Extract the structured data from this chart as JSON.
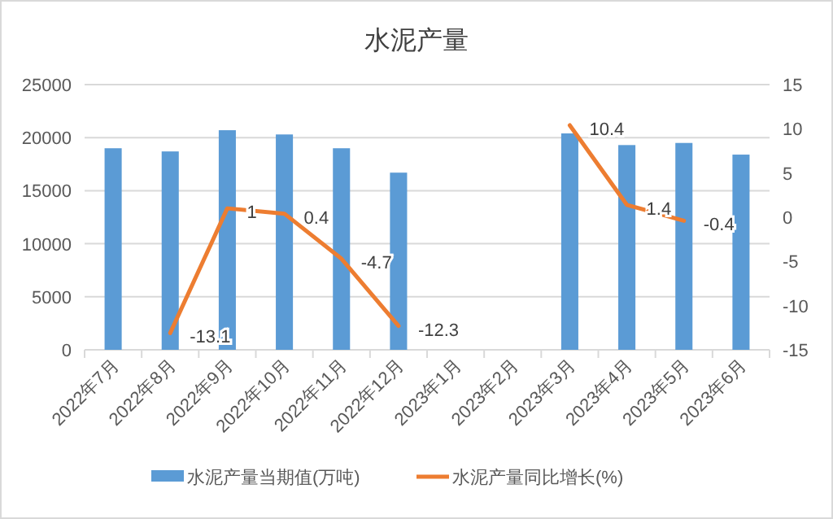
{
  "chart_data": {
    "type": "bar",
    "title": "水泥产量",
    "categories": [
      "2022年7月",
      "2022年8月",
      "2022年9月",
      "2022年10月",
      "2022年11月",
      "2022年12月",
      "2023年1月",
      "2023年2月",
      "2023年3月",
      "2023年4月",
      "2023年5月",
      "2023年6月"
    ],
    "series": [
      {
        "name": "水泥产量当期值(万吨)",
        "color": "#5b9bd5",
        "values": [
          19000,
          18700,
          20700,
          20300,
          19000,
          16700,
          null,
          null,
          20400,
          19300,
          19500,
          18400
        ]
      },
      {
        "name": "水泥产量同比增长(%)",
        "type": "line",
        "axis": "y2",
        "color": "#ed7d31",
        "values": [
          null,
          -13.1,
          1,
          0.4,
          -4.7,
          -12.3,
          null,
          null,
          10.4,
          1.4,
          -0.4,
          null
        ],
        "value_labels": [
          null,
          "-13.1",
          "1",
          "0.4",
          "-4.7",
          "-12.3",
          null,
          null,
          "10.4",
          "1.4",
          "-0.4",
          null
        ]
      }
    ],
    "ylim": [
      0,
      25000
    ],
    "yticks": [
      0,
      5000,
      10000,
      15000,
      20000,
      25000
    ],
    "y2lim": [
      -15,
      15
    ],
    "y2ticks": [
      -15,
      -10,
      -5,
      0,
      5,
      10,
      15
    ],
    "grid": "y",
    "legend": "bottom"
  }
}
